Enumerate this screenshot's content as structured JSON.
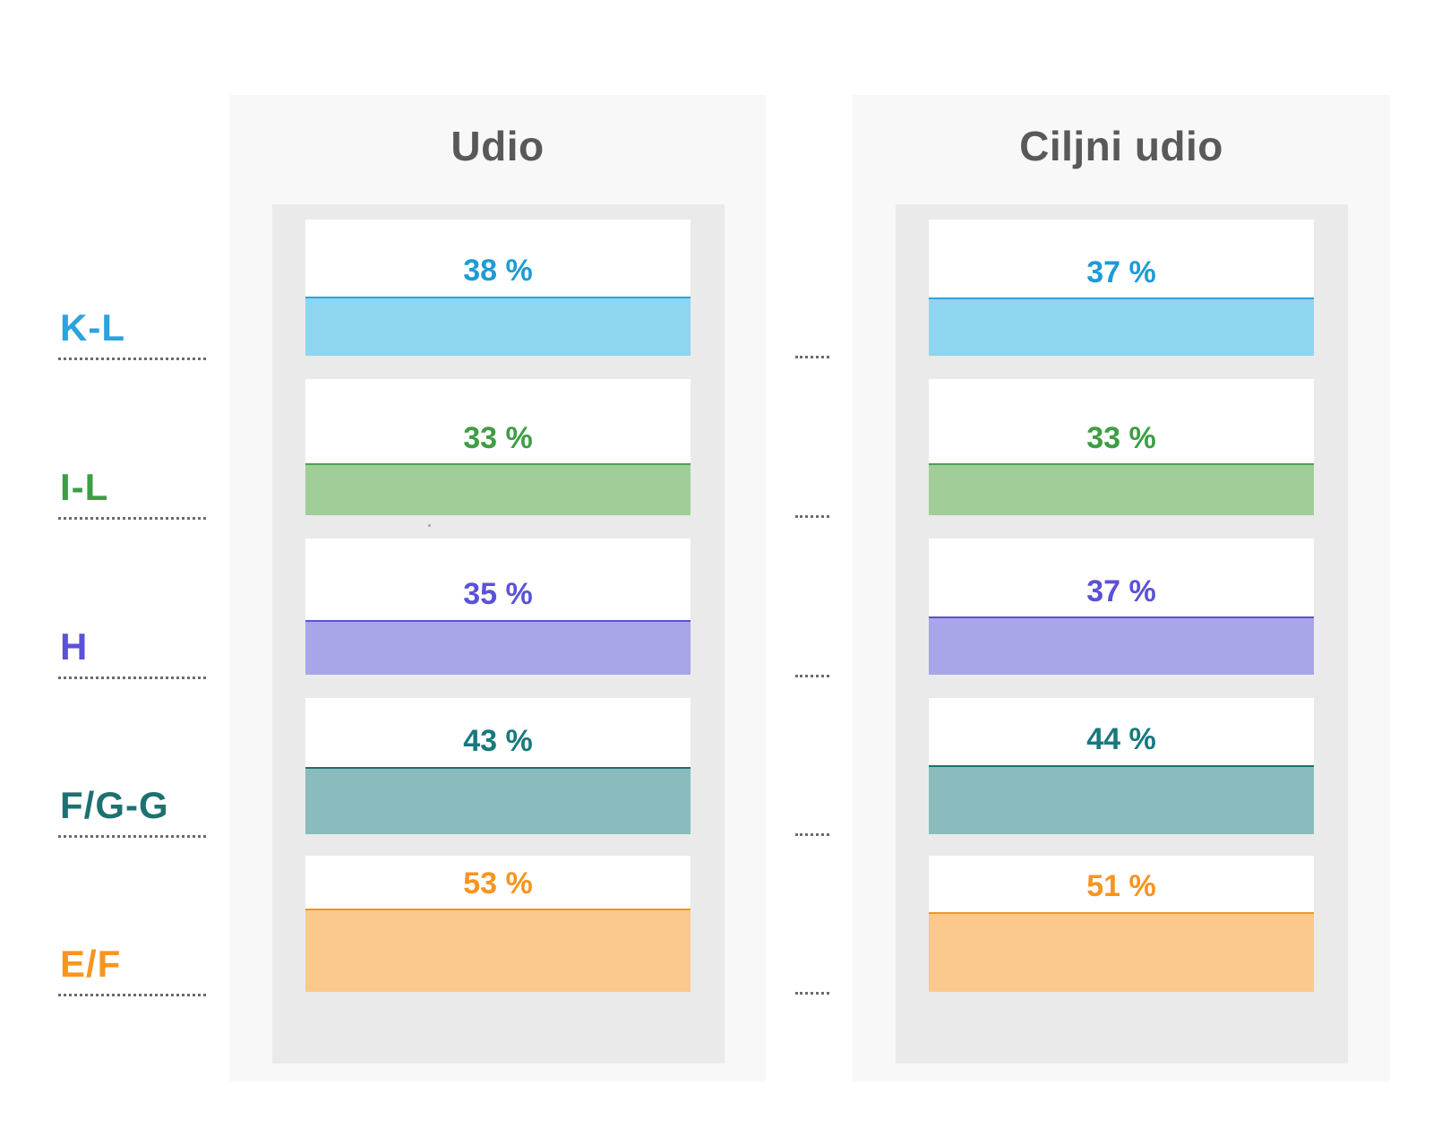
{
  "chart_data": {
    "type": "bar",
    "orientation": "horizontal-cards",
    "categories": [
      "K-L",
      "I-L",
      "H",
      "F/G-G",
      "E/F"
    ],
    "series": [
      {
        "name": "Udio",
        "values": [
          38,
          33,
          35,
          43,
          53
        ]
      },
      {
        "name": "Ciljni udio",
        "values": [
          37,
          33,
          37,
          44,
          51
        ]
      }
    ],
    "unit": "%",
    "value_labels_visible": true,
    "value_range": [
      0,
      100
    ],
    "grid": false,
    "legend_position": "column-titles"
  },
  "columns": [
    {
      "title": "Udio"
    },
    {
      "title": "Ciljni udio"
    }
  ],
  "rows": [
    {
      "label": "K-L",
      "share": 38,
      "target": 37,
      "share_text": "38 %",
      "target_text": "37 %",
      "label_color": "#2ba3dc",
      "value_color": "#1e9bd7",
      "bar_fill": "#8ed5f0",
      "bar_border": "#2aa6de"
    },
    {
      "label": "I-L",
      "share": 33,
      "target": 33,
      "share_text": "33 %",
      "target_text": "33 %",
      "label_color": "#3d9e44",
      "value_color": "#3d9e44",
      "bar_fill": "#a0cd98",
      "bar_border": "#4aa153"
    },
    {
      "label": "H",
      "share": 35,
      "target": 37,
      "share_text": "35 %",
      "target_text": "37 %",
      "label_color": "#5b52d8",
      "value_color": "#5a52d6",
      "bar_fill": "#a9a5e9",
      "bar_border": "#5d53cb"
    },
    {
      "label": "F/G-G",
      "share": 43,
      "target": 44,
      "share_text": "43 %",
      "target_text": "44 %",
      "label_color": "#1d7170",
      "value_color": "#17797c",
      "bar_fill": "#8abcbe",
      "bar_border": "#1d6f73"
    },
    {
      "label": "E/F",
      "share": 53,
      "target": 51,
      "share_text": "53 %",
      "target_text": "51 %",
      "label_color": "#f8951f",
      "value_color": "#f7941e",
      "bar_fill": "#fcc98c",
      "bar_border": "#f5941f"
    }
  ],
  "colors": {
    "page_background": "#ffffff",
    "outer_panel": "#f8f8f8",
    "inner_panel": "#eaeaea",
    "card_background": "#ffffff",
    "title_text": "#595959",
    "dotted_leader": "#6b6b6b"
  }
}
